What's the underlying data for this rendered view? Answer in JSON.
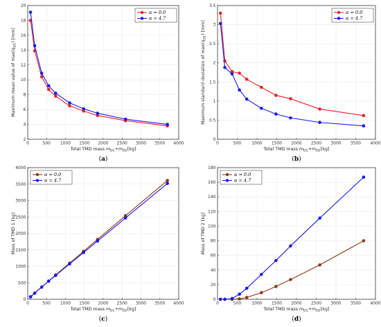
{
  "colors": {
    "red": "#e8202a",
    "blue": "#1a1ae6",
    "brown": "#8b3a12",
    "blue2": "#1a1ae6"
  },
  "chart_data": [
    {
      "type": "line",
      "panel_label": "a",
      "xlabel_main": "Total TMD mass m",
      "xlabel_sub1": "D1",
      "xlabel_mid": "+m",
      "xlabel_sub2": "D2",
      "xlabel_end": " [kg]",
      "ylabel_main": "Maximum mean value of max(",
      "ylabel_sym": "q",
      "ylabel_sub": "D1",
      "ylabel_end": ") [mm]",
      "xlim": [
        0,
        4000
      ],
      "ylim": [
        2,
        20
      ],
      "xticks": [
        0,
        500,
        1000,
        1500,
        2000,
        2500,
        3000,
        3500,
        4000
      ],
      "yticks": [
        2,
        4,
        6,
        8,
        10,
        12,
        14,
        16,
        18,
        20
      ],
      "legend_position": "top-right",
      "series": [
        {
          "name": "α = 0.0",
          "color": "red",
          "x": [
            75,
            185,
            370,
            555,
            740,
            1110,
            1480,
            1850,
            2590,
            3700
          ],
          "y": [
            18.0,
            13.9,
            10.4,
            8.7,
            7.8,
            6.5,
            5.8,
            5.2,
            4.5,
            3.8
          ]
        },
        {
          "name": "α = 4.7",
          "color": "blue",
          "x": [
            75,
            185,
            370,
            555,
            740,
            1110,
            1480,
            1850,
            2590,
            3700
          ],
          "y": [
            19.1,
            14.6,
            10.9,
            9.2,
            8.2,
            6.9,
            6.1,
            5.5,
            4.7,
            4.0
          ]
        }
      ]
    },
    {
      "type": "line",
      "panel_label": "b",
      "xlabel_main": "Total TMD mass m",
      "xlabel_sub1": "D1",
      "xlabel_mid": "+m",
      "xlabel_sub2": "D2",
      "xlabel_end": " [kg]",
      "ylabel_main": "Maximum standard deviation of max(",
      "ylabel_sym": "q",
      "ylabel_sub": "D1",
      "ylabel_end": ") [mm]",
      "xlim": [
        0,
        4000
      ],
      "ylim": [
        0,
        3.5
      ],
      "xticks": [
        0,
        500,
        1000,
        1500,
        2000,
        2500,
        3000,
        3500,
        4000
      ],
      "yticks": [
        0,
        0.5,
        1,
        1.5,
        2,
        2.5,
        3,
        3.5
      ],
      "legend_position": "top-right",
      "series": [
        {
          "name": "α = 0.0",
          "color": "red",
          "x": [
            75,
            185,
            370,
            555,
            740,
            1110,
            1480,
            1850,
            2590,
            3700
          ],
          "y": [
            3.3,
            2.05,
            1.77,
            1.73,
            1.57,
            1.36,
            1.15,
            1.06,
            0.79,
            0.62
          ]
        },
        {
          "name": "α = 4.7",
          "color": "blue",
          "x": [
            75,
            185,
            370,
            555,
            740,
            1110,
            1480,
            1850,
            2590,
            3700
          ],
          "y": [
            3.03,
            1.88,
            1.71,
            1.29,
            1.05,
            0.81,
            0.66,
            0.56,
            0.44,
            0.35
          ]
        }
      ]
    },
    {
      "type": "line",
      "panel_label": "c",
      "xlabel_main": "Total TMD mass m",
      "xlabel_sub1": "D1",
      "xlabel_mid": "+m",
      "xlabel_sub2": "D2",
      "xlabel_end": " [kg]",
      "ylabel_main": "Mass of TMD 1 [kg]",
      "ylabel_sym": "",
      "ylabel_sub": "",
      "ylabel_end": "",
      "xlim": [
        0,
        4000
      ],
      "ylim": [
        0,
        4000
      ],
      "xticks": [
        0,
        500,
        1000,
        1500,
        2000,
        2500,
        3000,
        3500,
        4000
      ],
      "yticks": [
        0,
        500,
        1000,
        1500,
        2000,
        2500,
        3000,
        3500,
        4000
      ],
      "legend_position": "top-left",
      "series": [
        {
          "name": "α = 0.0",
          "color": "brown",
          "x": [
            75,
            185,
            370,
            555,
            740,
            1110,
            1480,
            1850,
            2590,
            3700
          ],
          "y": [
            75,
            185,
            370,
            555,
            740,
            1100,
            1460,
            1820,
            2540,
            3610
          ]
        },
        {
          "name": "α = 4.7",
          "color": "blue2",
          "x": [
            75,
            185,
            370,
            555,
            740,
            1110,
            1480,
            1850,
            2590,
            3700
          ],
          "y": [
            75,
            185,
            370,
            550,
            725,
            1075,
            1420,
            1770,
            2470,
            3520
          ]
        }
      ]
    },
    {
      "type": "line",
      "panel_label": "d",
      "xlabel_main": "Total TMD mass m",
      "xlabel_sub1": "D1",
      "xlabel_mid": "+m",
      "xlabel_sub2": "D2",
      "xlabel_end": " [kg]",
      "ylabel_main": "Mass of TMD 2 [kg]",
      "ylabel_sym": "",
      "ylabel_sub": "",
      "ylabel_end": "",
      "xlim": [
        0,
        4000
      ],
      "ylim": [
        0,
        180
      ],
      "xticks": [
        0,
        500,
        1000,
        1500,
        2000,
        2500,
        3000,
        3500,
        4000
      ],
      "yticks": [
        0,
        20,
        40,
        60,
        80,
        100,
        120,
        140,
        160,
        180
      ],
      "legend_position": "top-left",
      "series": [
        {
          "name": "α = 0.0",
          "color": "brown",
          "x": [
            75,
            185,
            370,
            555,
            740,
            1110,
            1480,
            1850,
            2590,
            3700
          ],
          "y": [
            0,
            0,
            0,
            0.5,
            2.5,
            9,
            17.5,
            27,
            47,
            80
          ]
        },
        {
          "name": "α = 4.7",
          "color": "blue2",
          "x": [
            75,
            185,
            370,
            555,
            740,
            1110,
            1480,
            1850,
            2590,
            3700
          ],
          "y": [
            0,
            0,
            1,
            7,
            15,
            34,
            53,
            73,
            111,
            167
          ]
        }
      ]
    }
  ]
}
